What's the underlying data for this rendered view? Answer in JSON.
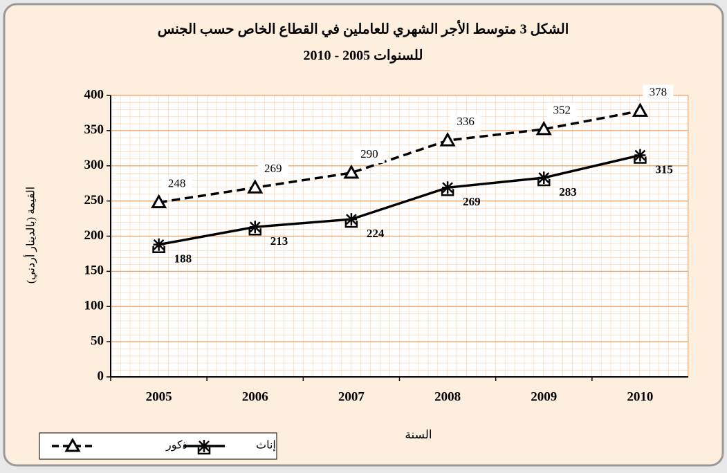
{
  "chart_data": {
    "type": "line",
    "title": "الشكل 3 متوسط الأجر الشهري للعاملين في القطاع الخاص حسب الجنس",
    "subtitle": "للسنوات 2005 - 2010",
    "x_label": "السنة",
    "y_label": "القيمة (بالدينار أردني)",
    "categories": [
      "2005",
      "2006",
      "2007",
      "2008",
      "2009",
      "2010"
    ],
    "series": [
      {
        "name": "ذكور",
        "color": "#000000",
        "line_style": "dashed",
        "marker": "triangle",
        "values": [
          248,
          269,
          290,
          336,
          352,
          378
        ]
      },
      {
        "name": "إناث",
        "color": "#000000",
        "line_style": "solid",
        "marker": "asterisk",
        "values": [
          188,
          213,
          224,
          269,
          283,
          315
        ]
      }
    ],
    "ylim": [
      0,
      400
    ],
    "yticks": [
      0,
      50,
      100,
      150,
      200,
      250,
      300,
      350,
      400
    ],
    "grid": true,
    "legend": "bottom-left"
  }
}
